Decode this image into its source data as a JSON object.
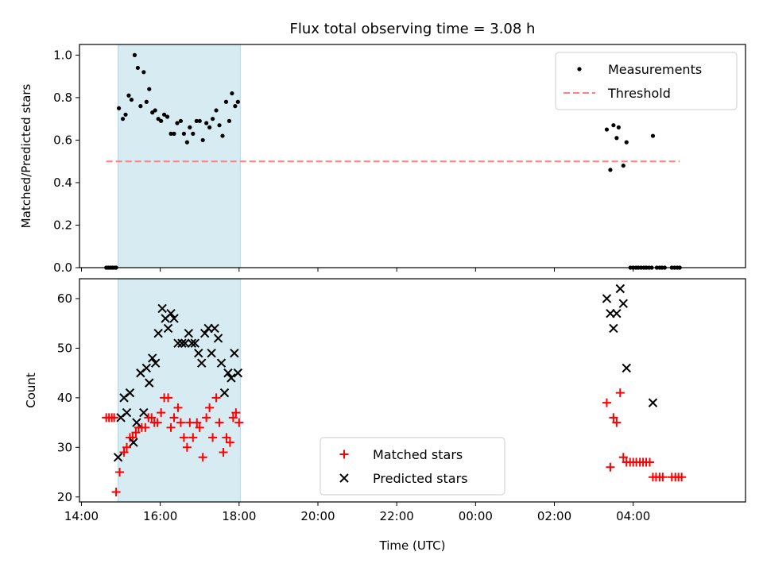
{
  "chart_data": {
    "title": "Flux total observing time = 3.08 h",
    "xlabel": "Time (UTC)",
    "x_ticks": [
      "14:00",
      "16:00",
      "18:00",
      "20:00",
      "22:00",
      "00:00",
      "02:00",
      "04:00"
    ],
    "x_tick_hours": [
      14,
      16,
      18,
      20,
      22,
      24,
      26,
      28
    ],
    "xlim_hours": [
      13.95,
      30.85
    ],
    "shaded_region_hours": [
      14.93,
      18.03
    ],
    "shaded_color": "#add8e6",
    "panels": [
      {
        "type": "scatter",
        "ylabel": "Matched/Predicted stars",
        "ylim": [
          0,
          1.05
        ],
        "yticks": [
          0.0,
          0.2,
          0.4,
          0.6,
          0.8,
          1.0
        ],
        "ytick_labels": [
          "0.0",
          "0.2",
          "0.4",
          "0.6",
          "0.8",
          "1.0"
        ],
        "legend_position": "top-right",
        "series": [
          {
            "name": "Measurements",
            "marker": "dot",
            "color": "#000000",
            "points": [
              [
                14.63,
                0
              ],
              [
                14.68,
                0
              ],
              [
                14.73,
                0
              ],
              [
                14.78,
                0
              ],
              [
                14.83,
                0
              ],
              [
                14.88,
                0
              ],
              [
                14.95,
                0.75
              ],
              [
                15.05,
                0.7
              ],
              [
                15.12,
                0.72
              ],
              [
                15.2,
                0.81
              ],
              [
                15.27,
                0.79
              ],
              [
                15.35,
                1.0
              ],
              [
                15.43,
                0.94
              ],
              [
                15.5,
                0.76
              ],
              [
                15.58,
                0.92
              ],
              [
                15.65,
                0.78
              ],
              [
                15.72,
                0.84
              ],
              [
                15.8,
                0.73
              ],
              [
                15.87,
                0.74
              ],
              [
                15.95,
                0.7
              ],
              [
                16.02,
                0.69
              ],
              [
                16.1,
                0.72
              ],
              [
                16.18,
                0.71
              ],
              [
                16.27,
                0.63
              ],
              [
                16.35,
                0.63
              ],
              [
                16.43,
                0.68
              ],
              [
                16.52,
                0.69
              ],
              [
                16.6,
                0.63
              ],
              [
                16.68,
                0.59
              ],
              [
                16.75,
                0.66
              ],
              [
                16.83,
                0.63
              ],
              [
                16.92,
                0.69
              ],
              [
                17.0,
                0.69
              ],
              [
                17.08,
                0.6
              ],
              [
                17.17,
                0.68
              ],
              [
                17.25,
                0.66
              ],
              [
                17.33,
                0.7
              ],
              [
                17.42,
                0.74
              ],
              [
                17.5,
                0.67
              ],
              [
                17.58,
                0.62
              ],
              [
                17.67,
                0.78
              ],
              [
                17.75,
                0.69
              ],
              [
                17.82,
                0.82
              ],
              [
                17.9,
                0.76
              ],
              [
                17.97,
                0.78
              ],
              [
                27.33,
                0.65
              ],
              [
                27.42,
                0.46
              ],
              [
                27.5,
                0.67
              ],
              [
                27.58,
                0.61
              ],
              [
                27.63,
                0.66
              ],
              [
                27.75,
                0.48
              ],
              [
                27.83,
                0.59
              ],
              [
                28.5,
                0.62
              ],
              [
                27.93,
                0
              ],
              [
                28.0,
                0
              ],
              [
                28.07,
                0
              ],
              [
                28.13,
                0
              ],
              [
                28.2,
                0
              ],
              [
                28.27,
                0
              ],
              [
                28.33,
                0
              ],
              [
                28.4,
                0
              ],
              [
                28.47,
                0
              ],
              [
                28.6,
                0
              ],
              [
                28.67,
                0
              ],
              [
                28.73,
                0
              ],
              [
                28.8,
                0
              ],
              [
                28.98,
                0
              ],
              [
                29.05,
                0
              ],
              [
                29.12,
                0
              ],
              [
                29.18,
                0
              ]
            ]
          },
          {
            "name": "Threshold",
            "marker": "dashed-line",
            "color": "#ff7f7f",
            "points": [
              [
                14.63,
                0.5
              ],
              [
                29.18,
                0.5
              ]
            ]
          }
        ]
      },
      {
        "type": "scatter",
        "ylabel": "Count",
        "ylim": [
          19,
          64
        ],
        "yticks": [
          20,
          30,
          40,
          50,
          60
        ],
        "ytick_labels": [
          "20",
          "30",
          "40",
          "50",
          "60"
        ],
        "legend_position": "bottom-center",
        "series": [
          {
            "name": "Matched stars",
            "marker": "plus",
            "color": "#ff0000",
            "points": [
              [
                14.63,
                36
              ],
              [
                14.7,
                36
              ],
              [
                14.77,
                36
              ],
              [
                14.83,
                36
              ],
              [
                14.88,
                21
              ],
              [
                14.97,
                25
              ],
              [
                15.08,
                29
              ],
              [
                15.15,
                30
              ],
              [
                15.23,
                32
              ],
              [
                15.3,
                32
              ],
              [
                15.38,
                33
              ],
              [
                15.45,
                34
              ],
              [
                15.53,
                34
              ],
              [
                15.62,
                34
              ],
              [
                15.7,
                36
              ],
              [
                15.78,
                36
              ],
              [
                15.85,
                35
              ],
              [
                15.93,
                35
              ],
              [
                16.02,
                37
              ],
              [
                16.1,
                40
              ],
              [
                16.2,
                40
              ],
              [
                16.27,
                34
              ],
              [
                16.35,
                36
              ],
              [
                16.45,
                38
              ],
              [
                16.52,
                35
              ],
              [
                16.6,
                32
              ],
              [
                16.68,
                30
              ],
              [
                16.75,
                35
              ],
              [
                16.83,
                32
              ],
              [
                16.93,
                35
              ],
              [
                17.0,
                34
              ],
              [
                17.08,
                28
              ],
              [
                17.17,
                36
              ],
              [
                17.25,
                38
              ],
              [
                17.33,
                32
              ],
              [
                17.42,
                40
              ],
              [
                17.5,
                35
              ],
              [
                17.6,
                29
              ],
              [
                17.68,
                32
              ],
              [
                17.77,
                31
              ],
              [
                17.85,
                36
              ],
              [
                17.92,
                37
              ],
              [
                18.0,
                35
              ],
              [
                27.33,
                39
              ],
              [
                27.42,
                26
              ],
              [
                27.5,
                36
              ],
              [
                27.58,
                35
              ],
              [
                27.67,
                41
              ],
              [
                27.75,
                28
              ],
              [
                27.83,
                27
              ],
              [
                27.92,
                27
              ],
              [
                28.0,
                27
              ],
              [
                28.08,
                27
              ],
              [
                28.17,
                27
              ],
              [
                28.25,
                27
              ],
              [
                28.33,
                27
              ],
              [
                28.42,
                27
              ],
              [
                28.5,
                24
              ],
              [
                28.58,
                24
              ],
              [
                28.67,
                24
              ],
              [
                28.75,
                24
              ],
              [
                28.98,
                24
              ],
              [
                29.07,
                24
              ],
              [
                29.15,
                24
              ],
              [
                29.23,
                24
              ]
            ]
          },
          {
            "name": "Predicted stars",
            "marker": "x",
            "color": "#000000",
            "points": [
              [
                14.93,
                28
              ],
              [
                15.0,
                36
              ],
              [
                15.08,
                40
              ],
              [
                15.15,
                37
              ],
              [
                15.23,
                41
              ],
              [
                15.32,
                31
              ],
              [
                15.4,
                35
              ],
              [
                15.5,
                45
              ],
              [
                15.58,
                37
              ],
              [
                15.65,
                46
              ],
              [
                15.72,
                43
              ],
              [
                15.8,
                48
              ],
              [
                15.88,
                47
              ],
              [
                15.95,
                53
              ],
              [
                16.05,
                58
              ],
              [
                16.13,
                56
              ],
              [
                16.2,
                54
              ],
              [
                16.27,
                57
              ],
              [
                16.35,
                56
              ],
              [
                16.45,
                51
              ],
              [
                16.55,
                51
              ],
              [
                16.63,
                51
              ],
              [
                16.72,
                53
              ],
              [
                16.8,
                51
              ],
              [
                16.88,
                51
              ],
              [
                16.97,
                49
              ],
              [
                17.05,
                47
              ],
              [
                17.13,
                53
              ],
              [
                17.22,
                54
              ],
              [
                17.3,
                49
              ],
              [
                17.38,
                54
              ],
              [
                17.47,
                52
              ],
              [
                17.55,
                47
              ],
              [
                17.63,
                41
              ],
              [
                17.72,
                45
              ],
              [
                17.8,
                44
              ],
              [
                17.88,
                49
              ],
              [
                17.97,
                45
              ],
              [
                27.33,
                60
              ],
              [
                27.42,
                57
              ],
              [
                27.5,
                54
              ],
              [
                27.58,
                57
              ],
              [
                27.67,
                62
              ],
              [
                27.75,
                59
              ],
              [
                27.83,
                46
              ],
              [
                28.5,
                39
              ]
            ]
          }
        ]
      }
    ]
  }
}
